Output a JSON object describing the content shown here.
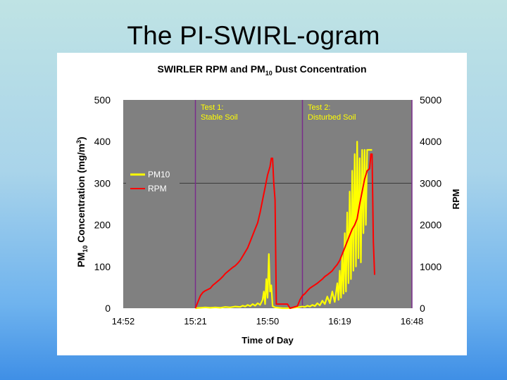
{
  "slide": {
    "title": "The PI-SWIRL-ogram"
  },
  "colors": {
    "plot_bg": "#808080",
    "pm10": "#ffff00",
    "rpm": "#ff0000",
    "divider": "#7a2d8c",
    "annotation": "#ffff00"
  },
  "chart_data": {
    "type": "line",
    "title": "SWIRLER RPM and PM",
    "title_sub": "10",
    "title_rest": " Dust Concentration",
    "xlabel": "Time of Day",
    "ylabel_left": "PM10 Concentration (mg/m3)",
    "ylabel_left_parts": {
      "pm": "PM",
      "sub": "10",
      "mid": " Concentration (mg/m",
      "sup": "3",
      "end": ")"
    },
    "ylabel_right": "RPM",
    "x_ticks": [
      "14:52",
      "15:21",
      "15:50",
      "16:19",
      "16:48"
    ],
    "x_tick_minutes": [
      0,
      29,
      58,
      87,
      116
    ],
    "xlim_minutes": [
      0,
      116
    ],
    "y_left_ticks": [
      0,
      100,
      200,
      300,
      400,
      500
    ],
    "ylim_left": [
      0,
      500
    ],
    "y_right_ticks": [
      0,
      1000,
      2000,
      3000,
      4000,
      5000
    ],
    "ylim_right": [
      0,
      5000
    ],
    "legend": [
      "PM10",
      "RPM"
    ],
    "dividers_minutes": [
      29,
      72,
      116
    ],
    "annotations": [
      {
        "x": 30,
        "line1": "Test 1:",
        "line2": "Stable Soil"
      },
      {
        "x": 73,
        "line1": "Test 2:",
        "line2": "Disturbed Soil"
      }
    ],
    "series": [
      {
        "name": "RPM",
        "axis": "right",
        "points": [
          [
            29,
            0
          ],
          [
            30,
            150
          ],
          [
            31,
            300
          ],
          [
            32,
            380
          ],
          [
            33,
            420
          ],
          [
            34,
            450
          ],
          [
            35,
            480
          ],
          [
            36,
            550
          ],
          [
            37,
            600
          ],
          [
            38,
            650
          ],
          [
            39,
            700
          ],
          [
            40,
            760
          ],
          [
            41,
            830
          ],
          [
            42,
            880
          ],
          [
            43,
            930
          ],
          [
            44,
            980
          ],
          [
            45,
            1020
          ],
          [
            46,
            1080
          ],
          [
            47,
            1150
          ],
          [
            48,
            1250
          ],
          [
            49,
            1350
          ],
          [
            50,
            1450
          ],
          [
            51,
            1600
          ],
          [
            52,
            1750
          ],
          [
            53,
            1900
          ],
          [
            54,
            2050
          ],
          [
            55,
            2300
          ],
          [
            56,
            2600
          ],
          [
            57,
            2900
          ],
          [
            58,
            3200
          ],
          [
            59,
            3400
          ],
          [
            59.5,
            3600
          ],
          [
            60,
            3600
          ],
          [
            60.5,
            3000
          ],
          [
            61,
            2600
          ],
          [
            61.5,
            100
          ],
          [
            62,
            100
          ],
          [
            66,
            100
          ],
          [
            67,
            0
          ],
          [
            70,
            50
          ],
          [
            71,
            200
          ],
          [
            72,
            300
          ],
          [
            73,
            350
          ],
          [
            74,
            420
          ],
          [
            75,
            480
          ],
          [
            76,
            520
          ],
          [
            77,
            560
          ],
          [
            78,
            600
          ],
          [
            79,
            650
          ],
          [
            80,
            700
          ],
          [
            81,
            760
          ],
          [
            82,
            800
          ],
          [
            83,
            850
          ],
          [
            84,
            900
          ],
          [
            85,
            980
          ],
          [
            86,
            1050
          ],
          [
            87,
            1150
          ],
          [
            88,
            1300
          ],
          [
            89,
            1450
          ],
          [
            90,
            1600
          ],
          [
            91,
            1750
          ],
          [
            92,
            1900
          ],
          [
            93,
            2000
          ],
          [
            94,
            2150
          ],
          [
            95,
            2500
          ],
          [
            96,
            2800
          ],
          [
            97,
            3100
          ],
          [
            98,
            3300
          ],
          [
            99,
            3350
          ],
          [
            99.5,
            3700
          ],
          [
            100,
            3700
          ],
          [
            100.5,
            1600
          ],
          [
            101,
            800
          ]
        ]
      },
      {
        "name": "PM10",
        "axis": "left",
        "points": [
          [
            29,
            0
          ],
          [
            31,
            1
          ],
          [
            33,
            2
          ],
          [
            35,
            1
          ],
          [
            37,
            2
          ],
          [
            39,
            1
          ],
          [
            41,
            3
          ],
          [
            43,
            2
          ],
          [
            45,
            4
          ],
          [
            47,
            3
          ],
          [
            48,
            6
          ],
          [
            49,
            4
          ],
          [
            50,
            8
          ],
          [
            51,
            5
          ],
          [
            52,
            10
          ],
          [
            53,
            6
          ],
          [
            54,
            12
          ],
          [
            55,
            8
          ],
          [
            56,
            20
          ],
          [
            56.5,
            40
          ],
          [
            57,
            10
          ],
          [
            57.5,
            70
          ],
          [
            58,
            25
          ],
          [
            58.5,
            130
          ],
          [
            59,
            40
          ],
          [
            59.5,
            55
          ],
          [
            60,
            5
          ],
          [
            61,
            2
          ],
          [
            64,
            0
          ],
          [
            67,
            0
          ],
          [
            70,
            2
          ],
          [
            72,
            4
          ],
          [
            73,
            3
          ],
          [
            74,
            6
          ],
          [
            75,
            4
          ],
          [
            76,
            8
          ],
          [
            77,
            5
          ],
          [
            78,
            12
          ],
          [
            79,
            7
          ],
          [
            80,
            18
          ],
          [
            81,
            10
          ],
          [
            82,
            28
          ],
          [
            83,
            12
          ],
          [
            84,
            40
          ],
          [
            85,
            15
          ],
          [
            86,
            60
          ],
          [
            86.5,
            20
          ],
          [
            87,
            90
          ],
          [
            87.5,
            25
          ],
          [
            88,
            130
          ],
          [
            88.5,
            35
          ],
          [
            89,
            180
          ],
          [
            89.5,
            40
          ],
          [
            90,
            230
          ],
          [
            90.5,
            60
          ],
          [
            91,
            280
          ],
          [
            91.5,
            70
          ],
          [
            92,
            330
          ],
          [
            92.5,
            90
          ],
          [
            93,
            370
          ],
          [
            93.5,
            100
          ],
          [
            94,
            400
          ],
          [
            94.5,
            120
          ],
          [
            95,
            360
          ],
          [
            95.5,
            110
          ],
          [
            96,
            380
          ],
          [
            96.5,
            180
          ],
          [
            97,
            380
          ],
          [
            97.5,
            200
          ],
          [
            98,
            380
          ],
          [
            99,
            380
          ],
          [
            100,
            380
          ]
        ]
      }
    ]
  }
}
